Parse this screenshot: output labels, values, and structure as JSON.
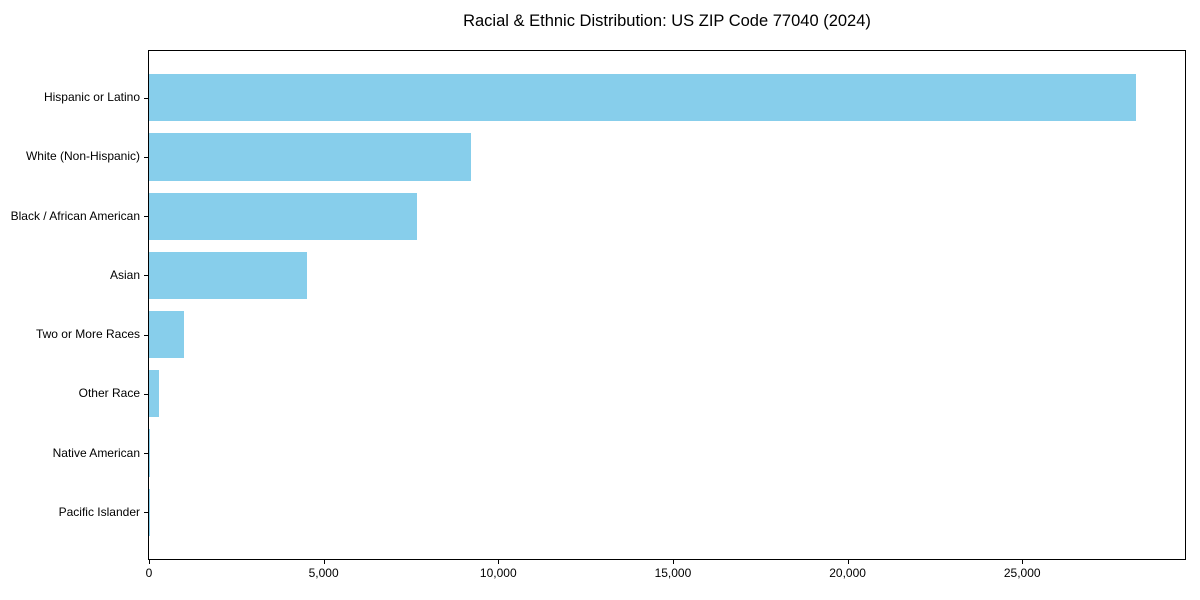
{
  "chart_data": {
    "type": "bar",
    "orientation": "horizontal",
    "title": "Racial & Ethnic Distribution: US ZIP Code 77040 (2024)",
    "xlabel": "",
    "ylabel": "",
    "categories": [
      "Hispanic or Latino",
      "White (Non-Hispanic)",
      "Black / African American",
      "Asian",
      "Two or More Races",
      "Other Race",
      "Native American",
      "Pacific Islander"
    ],
    "values": [
      28250,
      9220,
      7680,
      4530,
      990,
      300,
      40,
      10
    ],
    "xlim": [
      0,
      29660
    ],
    "xticks": [
      0,
      5000,
      10000,
      15000,
      20000,
      25000
    ],
    "xtick_labels": [
      "0",
      "5,000",
      "10,000",
      "15,000",
      "20,000",
      "25,000"
    ],
    "bar_color": "#87CEEB",
    "grid": false,
    "legend": "none"
  }
}
